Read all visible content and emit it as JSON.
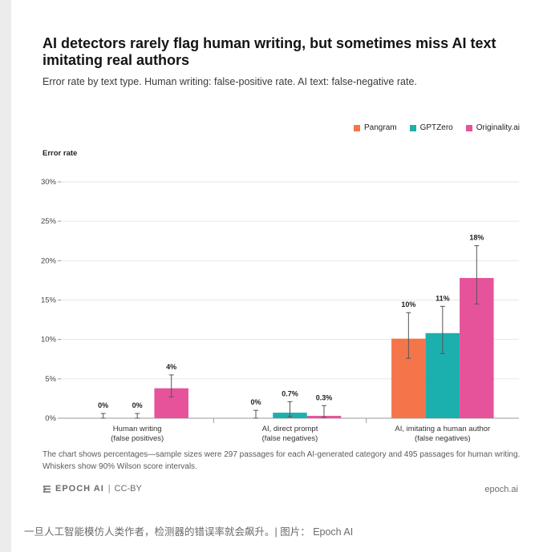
{
  "title": "AI detectors rarely flag human writing, but sometimes miss AI text imitating real authors",
  "subtitle": "Error rate by text type. Human writing: false-positive rate. AI text: false-negative rate.",
  "legend": [
    {
      "name": "Pangram",
      "color": "#F4754A"
    },
    {
      "name": "GPTZero",
      "color": "#1BB0AE"
    },
    {
      "name": "Originality.ai",
      "color": "#E6539A"
    }
  ],
  "footnote": "The chart shows percentages—sample sizes were 297 passages for each AI-generated category and 495 passages for human writing. Whiskers show 90% Wilson score intervals.",
  "brand": {
    "logo": "EPOCH AI",
    "separator": "|",
    "license": "CC-BY",
    "site": "epoch.ai"
  },
  "caption": "一旦人工智能模仿人类作者，检测器的错误率就会飙升。| 图片： Epoch AI",
  "chart_data": {
    "type": "bar",
    "ylabel": "Error rate",
    "ylim": [
      0,
      30
    ],
    "yticks": [
      "0%",
      "5%",
      "10%",
      "15%",
      "20%",
      "25%",
      "30%"
    ],
    "grid": true,
    "legend_position": "top-right",
    "categories": [
      [
        "Human writing",
        "(false positives)"
      ],
      [
        "AI, direct prompt",
        "(false negatives)"
      ],
      [
        "AI, imitating a human author",
        "(false negatives)"
      ]
    ],
    "series": [
      {
        "name": "Pangram",
        "color": "#F4754A",
        "values": [
          0,
          0,
          10.1
        ],
        "labels": [
          "0%",
          "0%",
          "10%"
        ],
        "ci": [
          [
            0,
            0.6
          ],
          [
            0,
            1.0
          ],
          [
            7.6,
            13.4
          ]
        ]
      },
      {
        "name": "GPTZero",
        "color": "#1BB0AE",
        "values": [
          0,
          0.7,
          10.8
        ],
        "labels": [
          "0%",
          "0.7%",
          "11%"
        ],
        "ci": [
          [
            0,
            0.6
          ],
          [
            0.2,
            2.1
          ],
          [
            8.2,
            14.2
          ]
        ]
      },
      {
        "name": "Originality.ai",
        "color": "#E6539A",
        "values": [
          3.8,
          0.3,
          17.8
        ],
        "labels": [
          "4%",
          "",
          "18%"
        ],
        "ci": [
          [
            2.7,
            5.5
          ],
          [
            0.1,
            1.6
          ],
          [
            14.5,
            21.9
          ]
        ]
      }
    ],
    "extra_labels": [
      {
        "category": 1,
        "series": 2,
        "text": "0.3%"
      }
    ]
  }
}
